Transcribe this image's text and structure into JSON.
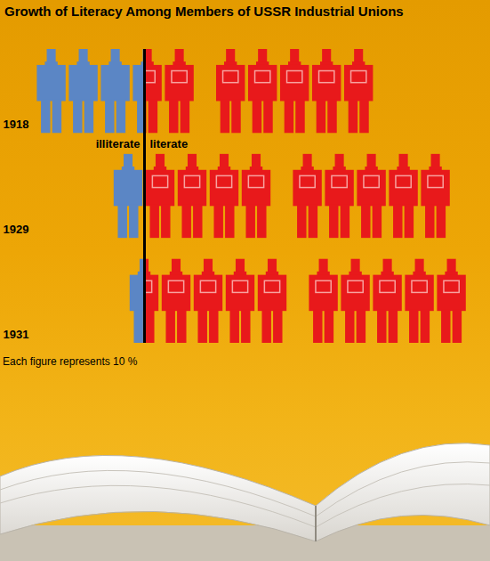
{
  "chart_data": {
    "type": "bar",
    "title": "Growth of Literacy Among Members of USSR Industrial Unions",
    "orientation": "horizontal",
    "stacked": true,
    "tick_labels": "y",
    "categories": [
      "1918",
      "1929",
      "1931"
    ],
    "series": [
      {
        "name": "illiterate",
        "color": "#5b86c5",
        "values": [
          34,
          10,
          5
        ]
      },
      {
        "name": "literate",
        "color": "#e8191b",
        "values": [
          66,
          90,
          95
        ]
      }
    ],
    "figure_value": 10,
    "caption": "Each figure represents 10 %"
  }
}
